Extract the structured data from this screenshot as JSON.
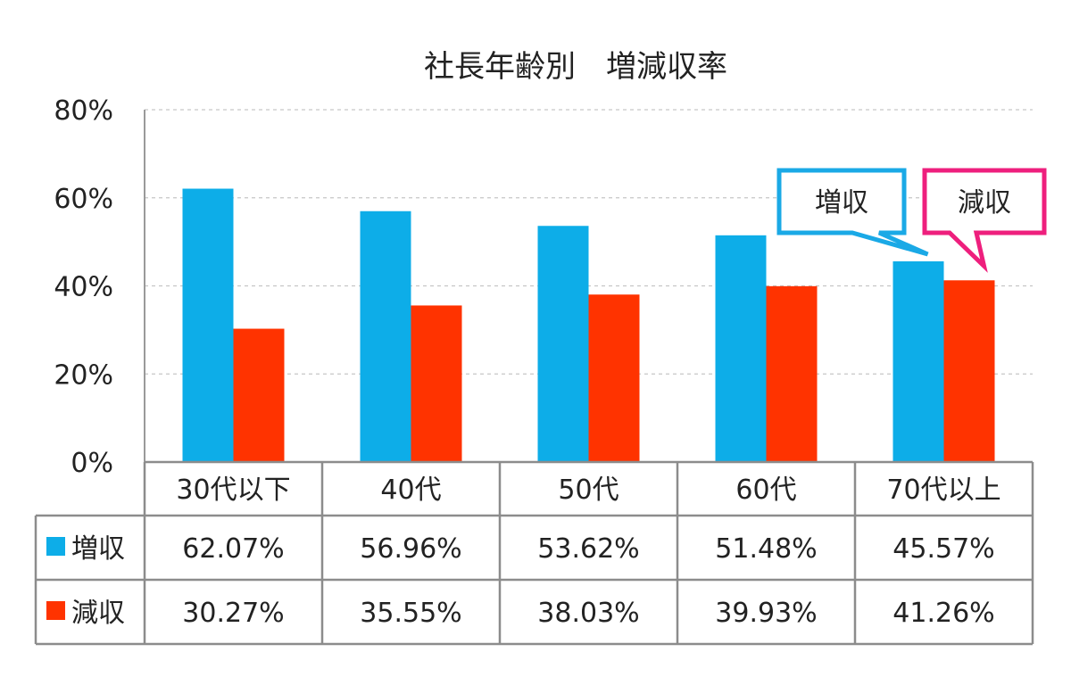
{
  "chart_data": {
    "type": "bar",
    "title": "社長年齢別　増減収率",
    "categories": [
      "30代以下",
      "40代",
      "50代",
      "60代",
      "70代以上"
    ],
    "series": [
      {
        "name": "増収",
        "color": "#0dade8",
        "values": [
          62.07,
          56.96,
          53.62,
          51.48,
          45.57
        ]
      },
      {
        "name": "減収",
        "color": "#ff3300",
        "values": [
          30.27,
          35.55,
          38.03,
          39.93,
          41.26
        ]
      }
    ],
    "value_labels": [
      [
        "62.07%",
        "56.96%",
        "53.62%",
        "51.48%",
        "45.57%"
      ],
      [
        "30.27%",
        "35.55%",
        "38.03%",
        "39.93%",
        "41.26%"
      ]
    ],
    "ylim": [
      0,
      80
    ],
    "yticks": [
      "0%",
      "20%",
      "40%",
      "60%",
      "80%"
    ],
    "grid": true,
    "legend": "data-table",
    "callouts": [
      {
        "text": "増収",
        "border_color": "#1aa9e6"
      },
      {
        "text": "減収",
        "border_color": "#ee1f7d"
      }
    ]
  }
}
